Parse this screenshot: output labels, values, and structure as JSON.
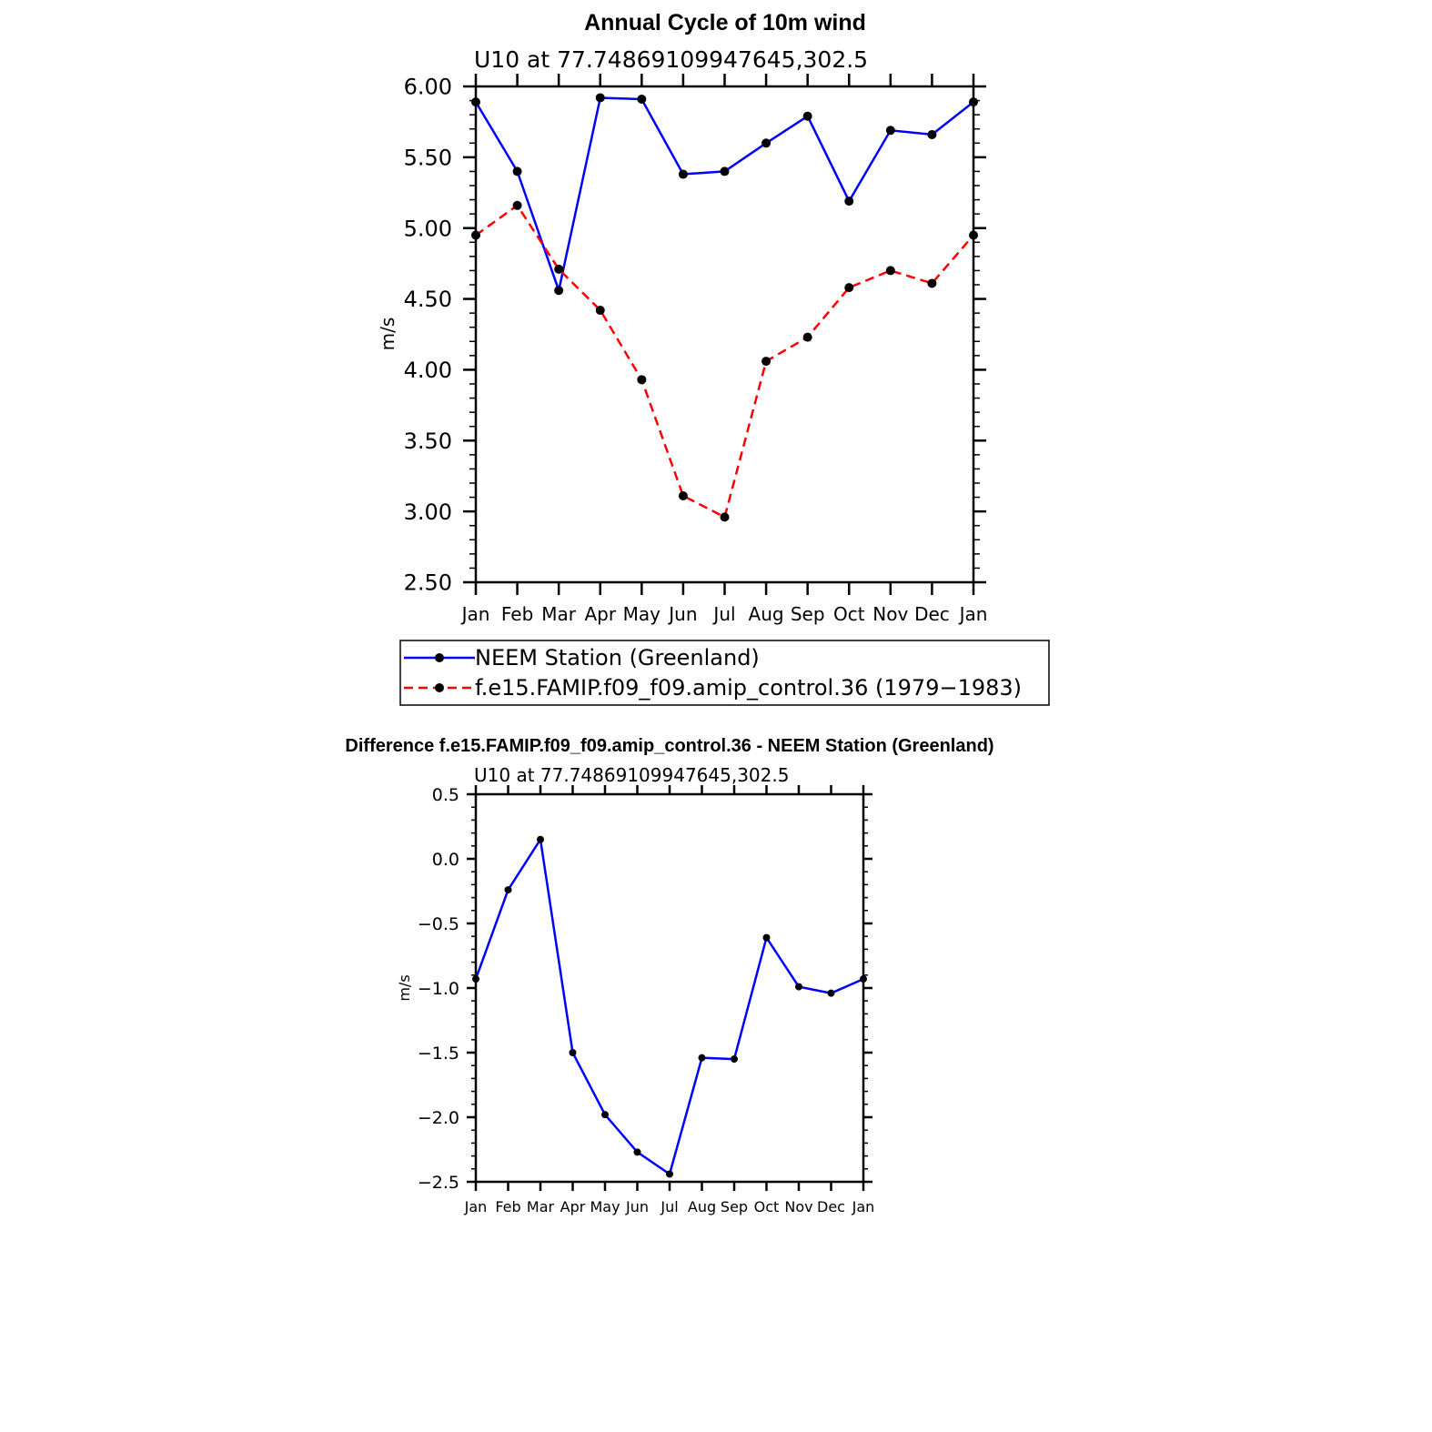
{
  "chart_data": [
    {
      "type": "line",
      "title": "Annual Cycle of 10m wind",
      "subtitle": "U10 at 77.74869109947645,302.5",
      "xlabel": "",
      "ylabel": "m/s",
      "categories": [
        "Jan",
        "Feb",
        "Mar",
        "Apr",
        "May",
        "Jun",
        "Jul",
        "Aug",
        "Sep",
        "Oct",
        "Nov",
        "Dec",
        "Jan"
      ],
      "ylim": [
        2.5,
        6.0
      ],
      "yticks": [
        "2.50",
        "3.00",
        "3.50",
        "4.00",
        "4.50",
        "5.00",
        "5.50",
        "6.00"
      ],
      "grid": false,
      "legend_position": "bottom",
      "series": [
        {
          "name": "NEEM Station (Greenland)",
          "color": "#0000ff",
          "dash": "solid",
          "values": [
            5.89,
            5.4,
            4.56,
            5.92,
            5.91,
            5.38,
            5.4,
            5.6,
            5.79,
            5.19,
            5.69,
            5.66,
            5.89
          ]
        },
        {
          "name": "f.e15.FAMIP.f09_f09.amip_control.36 (1979−1983)",
          "color": "#ff0000",
          "dash": "dashed",
          "values": [
            4.95,
            5.16,
            4.71,
            4.42,
            3.93,
            3.11,
            2.96,
            4.06,
            4.23,
            4.58,
            4.7,
            4.61,
            4.95
          ]
        }
      ]
    },
    {
      "type": "line",
      "title": "Difference f.e15.FAMIP.f09_f09.amip_control.36 - NEEM Station (Greenland)",
      "subtitle": "U10 at 77.74869109947645,302.5",
      "xlabel": "",
      "ylabel": "m/s",
      "categories": [
        "Jan",
        "Feb",
        "Mar",
        "Apr",
        "May",
        "Jun",
        "Jul",
        "Aug",
        "Sep",
        "Oct",
        "Nov",
        "Dec",
        "Jan"
      ],
      "ylim": [
        -2.5,
        0.5
      ],
      "yticks": [
        "−2.5",
        "−2.0",
        "−1.5",
        "−1.0",
        "−0.5",
        "0.0",
        "0.5"
      ],
      "grid": false,
      "series": [
        {
          "color": "#0000ff",
          "dash": "solid",
          "values": [
            -0.93,
            -0.24,
            0.15,
            -1.5,
            -1.98,
            -2.27,
            -2.44,
            -1.54,
            -1.55,
            -0.61,
            -0.99,
            -1.04,
            -0.93
          ]
        }
      ]
    }
  ]
}
